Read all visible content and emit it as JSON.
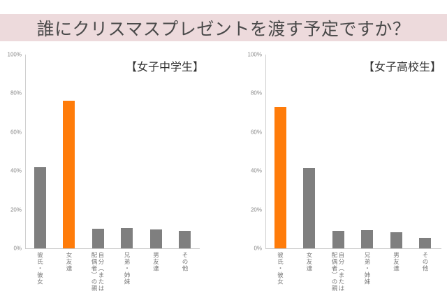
{
  "header": {
    "title": "誰にクリスマスプレゼントを渡す予定ですか？",
    "background": "#eddadc"
  },
  "colors": {
    "highlight": "#ff7c0a",
    "default": "#7f7f7f"
  },
  "chart_data": [
    {
      "type": "bar",
      "title": "【女子中学生】",
      "categories": [
        "彼氏・彼女",
        "女友達",
        "自分（または配偶者）の親",
        "兄弟・姉妹",
        "男友達",
        "その他"
      ],
      "values": [
        42,
        76,
        10,
        10.5,
        9.7,
        9.2
      ],
      "highlight_index": 1,
      "xlabel": "",
      "ylabel": "",
      "ylim": [
        0,
        100
      ],
      "yticks": [
        "100%",
        "80%",
        "60%",
        "40%",
        "20%",
        "0%"
      ],
      "grid": false,
      "legend": "none"
    },
    {
      "type": "bar",
      "title": "【女子高校生】",
      "categories": [
        "彼氏・彼女",
        "女友達",
        "自分（または配偶者）の親",
        "兄弟・姉妹",
        "男友達",
        "その他"
      ],
      "values": [
        73,
        41.5,
        9,
        9.5,
        8.3,
        5.4
      ],
      "highlight_index": 0,
      "xlabel": "",
      "ylabel": "",
      "ylim": [
        0,
        100
      ],
      "yticks": [
        "100%",
        "80%",
        "60%",
        "40%",
        "20%",
        "0%"
      ],
      "grid": false,
      "legend": "none"
    }
  ],
  "x_labels_display": [
    [
      "彼氏・彼女"
    ],
    [
      "女友達"
    ],
    [
      "自分（または",
      "配偶者）の親"
    ],
    [
      "兄弟・姉妹"
    ],
    [
      "男友達"
    ],
    [
      "その他"
    ]
  ]
}
